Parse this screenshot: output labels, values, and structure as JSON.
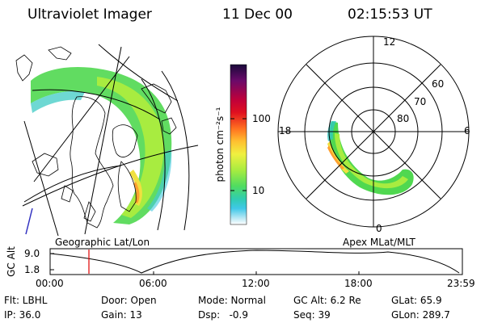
{
  "header": {
    "title": "Ultraviolet Imager",
    "date": "11 Dec 00",
    "time": "02:15:53 UT"
  },
  "left_panel": {
    "caption": "Geographic Lat/Lon"
  },
  "right_panel": {
    "caption": "Apex MLat/MLT",
    "mlt_labels": [
      "12",
      "18",
      "6",
      "0"
    ],
    "mlat_labels": [
      "60",
      "70",
      "80"
    ]
  },
  "colorbar": {
    "label": "photon cm⁻²s⁻¹",
    "ticks": [
      "100",
      "10"
    ],
    "scale": "log",
    "colors": [
      "#1a0a3a",
      "#6a0a6a",
      "#b0003a",
      "#e01020",
      "#ff6020",
      "#ffa020",
      "#ffe040",
      "#c8f040",
      "#70e040",
      "#30d890",
      "#30c0e0",
      "#a0e0f0",
      "#ffffff"
    ]
  },
  "timeline": {
    "axis_label": "GC Alt",
    "y_ticks": [
      "9.0",
      "1.8"
    ],
    "x_ticks": [
      "00:00",
      "06:00",
      "12:00",
      "18:00",
      "23:59"
    ],
    "marker_time": "02:15:53",
    "marker_color": "#e00000"
  },
  "info": {
    "row1": [
      "Flt: LBHL",
      "Door: Open",
      "Mode: Normal",
      "GC Alt: 6.2 Re",
      "GLat: 65.9"
    ],
    "row2": [
      "IP: 36.0",
      "Gain: 13",
      "Dsp:   -0.9",
      "Seq: 39",
      "GLon: 289.7"
    ]
  }
}
